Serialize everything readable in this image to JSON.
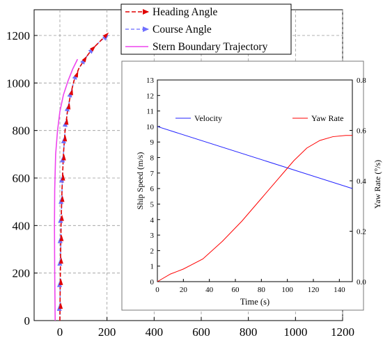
{
  "chart_data": [
    {
      "type": "line",
      "title": "",
      "xlabel": "",
      "ylabel": "",
      "xlim": [
        -60,
        1200
      ],
      "ylim": [
        0,
        1300
      ],
      "xticks": [
        0,
        200,
        400,
        600,
        800,
        1000,
        1200
      ],
      "yticks": [
        0,
        200,
        400,
        600,
        800,
        1000,
        1200
      ],
      "grid": true,
      "legend_position": "top-center",
      "series": [
        {
          "name": "Heading Angle",
          "color": "#e00000",
          "style": "dashed-with-arrows",
          "x": [
            0,
            2,
            5,
            9,
            15,
            22,
            32,
            45,
            60,
            80,
            105,
            135,
            170,
            205
          ],
          "y": [
            0,
            200,
            400,
            550,
            700,
            800,
            880,
            950,
            1010,
            1060,
            1100,
            1140,
            1175,
            1210
          ]
        },
        {
          "name": "Course Angle",
          "color": "#8080ff",
          "style": "dashed-with-arrows",
          "x": [
            0,
            2,
            5,
            9,
            15,
            22,
            32,
            45,
            60,
            80,
            105,
            135,
            170,
            200
          ],
          "y": [
            0,
            200,
            400,
            550,
            700,
            800,
            880,
            950,
            1010,
            1060,
            1100,
            1140,
            1175,
            1200
          ]
        },
        {
          "name": "Stern Boundary Trajectory",
          "color": "#ee44ee",
          "style": "solid",
          "x": [
            -20,
            -22,
            -23,
            -22,
            -18,
            -10,
            0,
            15,
            35,
            55,
            75
          ],
          "y": [
            0,
            200,
            400,
            550,
            700,
            800,
            880,
            950,
            1010,
            1060,
            1100
          ]
        }
      ],
      "arrow_y": [
        60,
        160,
        250,
        345,
        430,
        510,
        600,
        685,
        765,
        835,
        900,
        960,
        1035,
        1100,
        1145,
        1200
      ]
    },
    {
      "type": "line",
      "title": "",
      "xlabel": "Time (s)",
      "ylabel": "Ship Speed (m/s)",
      "ylabel_right": "Yaw Rate (°/s)",
      "xlim": [
        0,
        150
      ],
      "ylim": [
        0,
        13
      ],
      "ylim_right": [
        0,
        0.8
      ],
      "xticks": [
        0,
        20,
        40,
        60,
        80,
        100,
        120,
        140
      ],
      "yticks": [
        0,
        1,
        2,
        3,
        4,
        5,
        6,
        7,
        8,
        9,
        10,
        11,
        12,
        13
      ],
      "yticks_right": [
        "0.0",
        "0.2",
        "0.4",
        "0.6",
        "0.8"
      ],
      "grid": false,
      "legend_position": "top-left and top-right",
      "series": [
        {
          "name": "Velocity",
          "color": "#2020ff",
          "axis": "left",
          "x": [
            0,
            150
          ],
          "y": [
            10,
            6
          ]
        },
        {
          "name": "Yaw Rate",
          "color": "#ff0000",
          "axis": "right",
          "x": [
            0,
            10,
            20,
            35,
            50,
            65,
            80,
            95,
            105,
            115,
            125,
            135,
            145,
            150
          ],
          "y": [
            0.0,
            0.03,
            0.05,
            0.09,
            0.16,
            0.24,
            0.33,
            0.42,
            0.48,
            0.53,
            0.56,
            0.575,
            0.58,
            0.58
          ]
        }
      ]
    }
  ]
}
